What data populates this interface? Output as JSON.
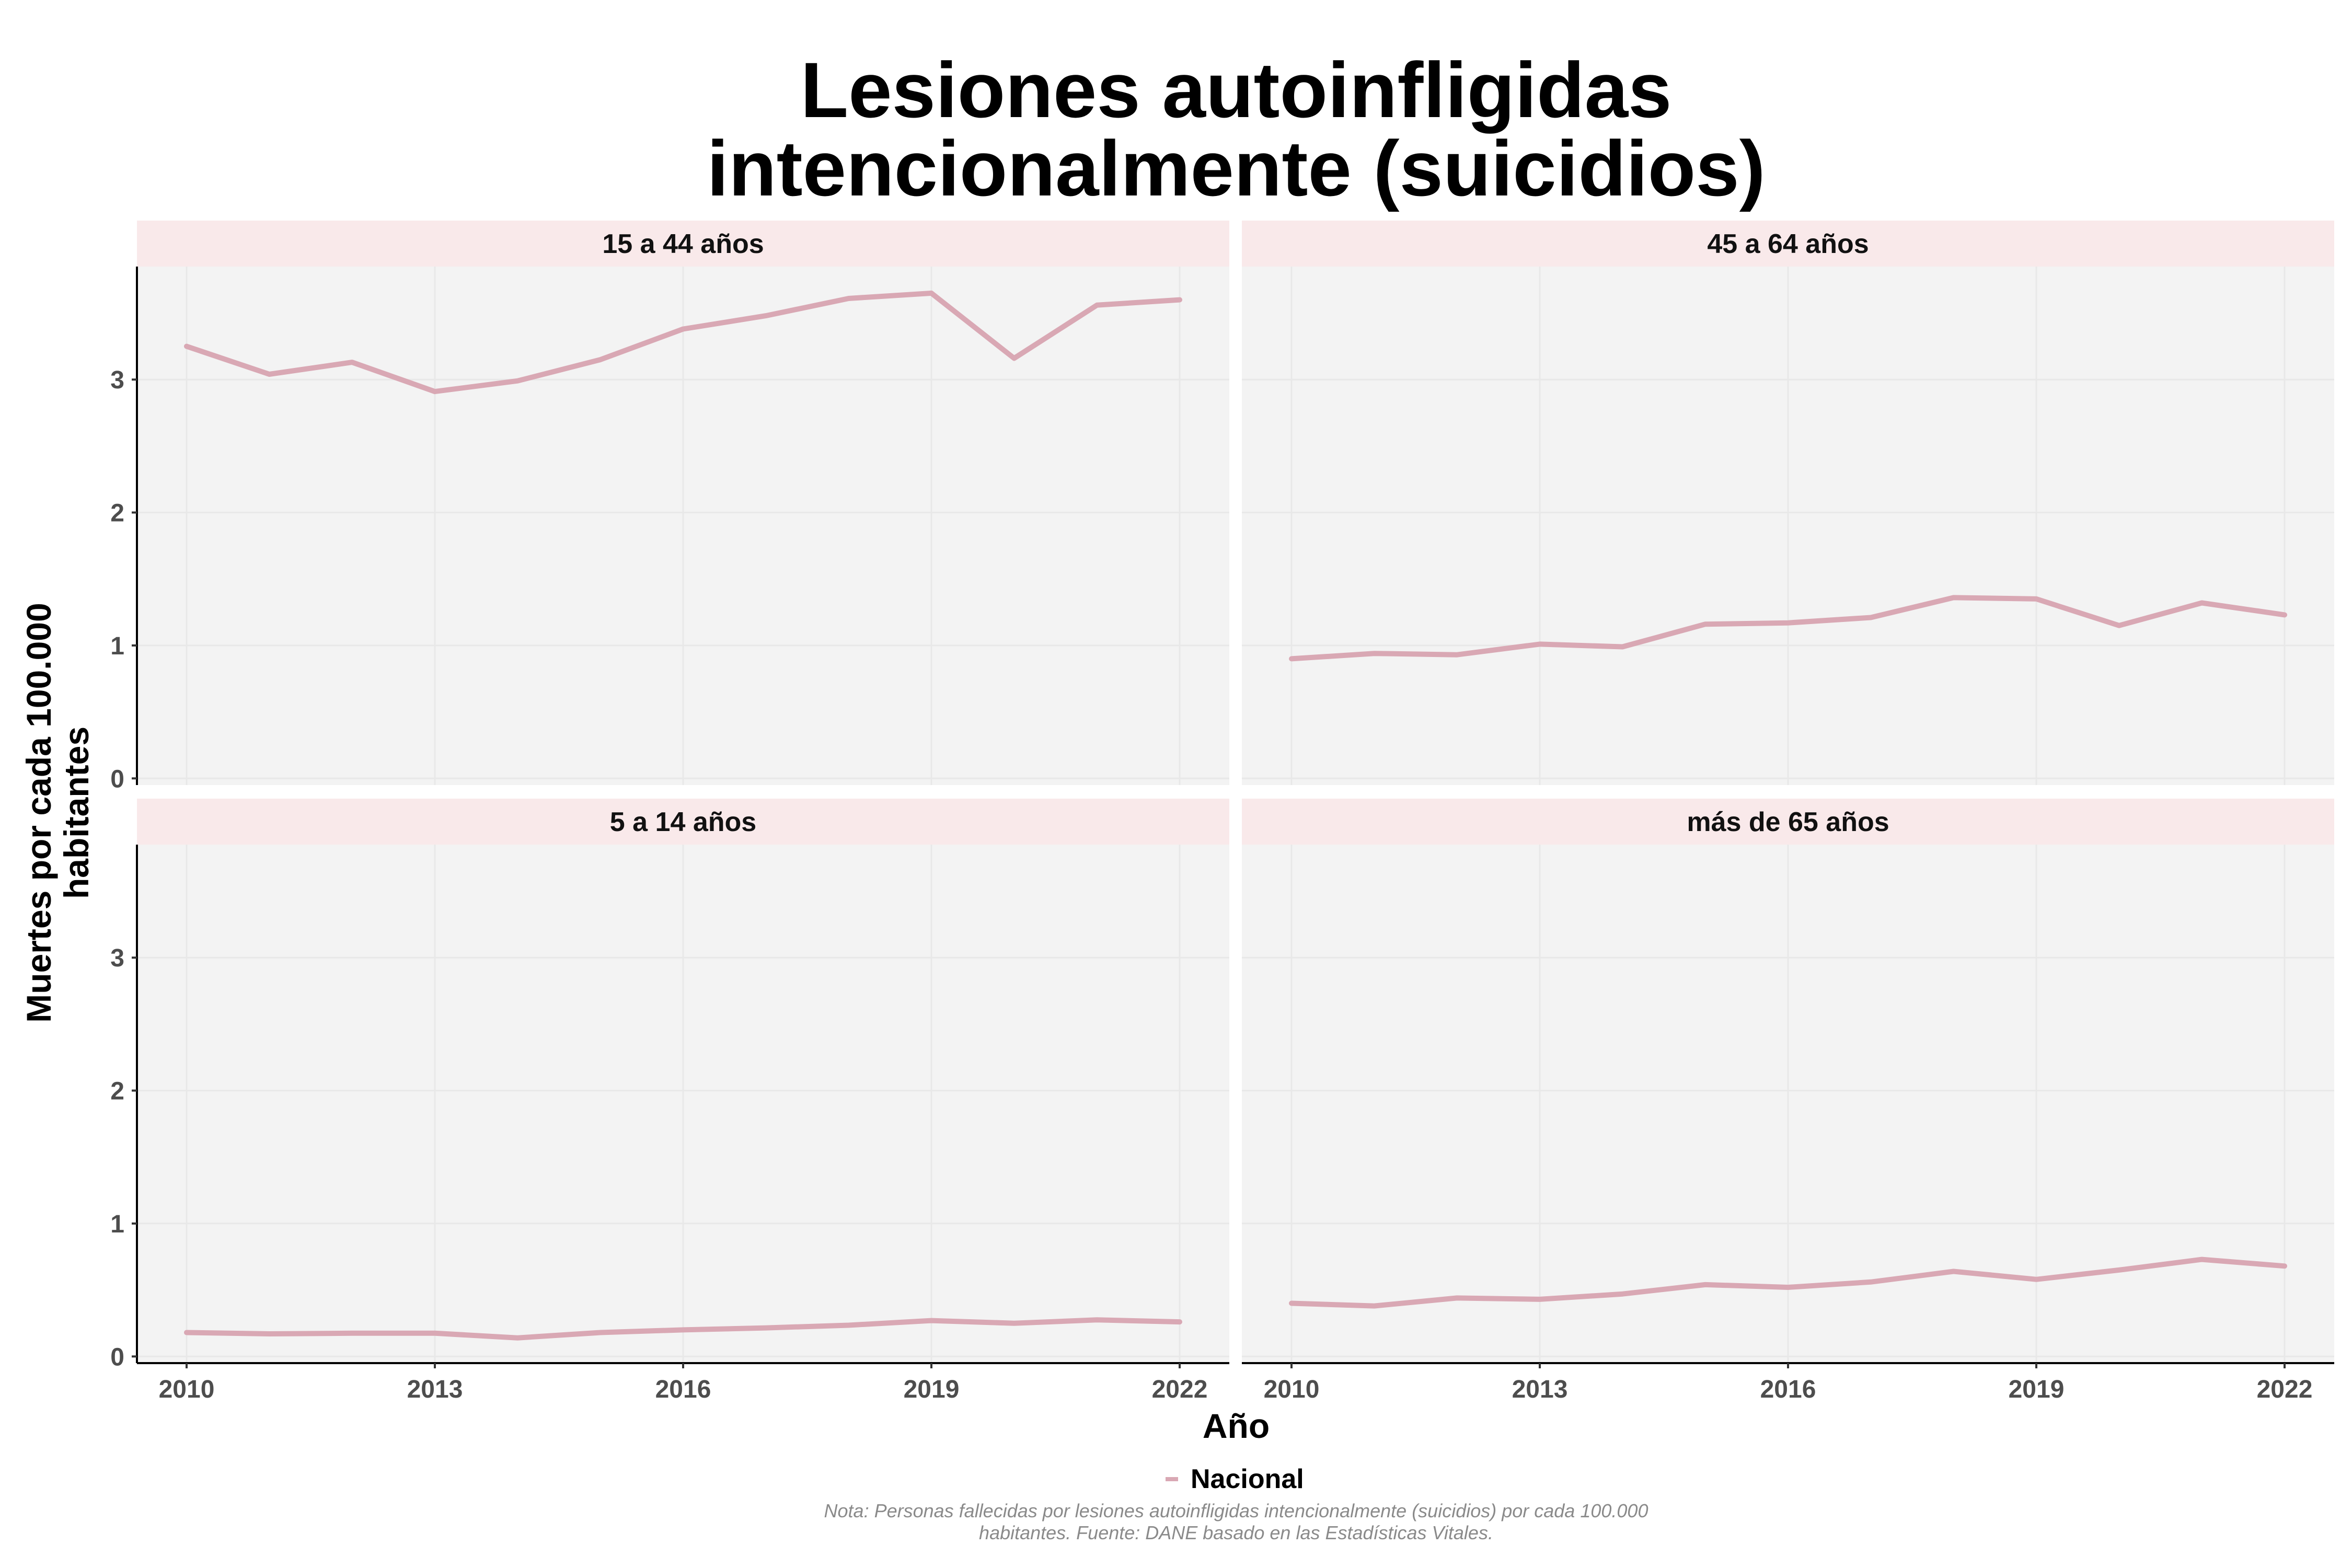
{
  "chart_data": {
    "type": "line",
    "title_lines": [
      "Lesiones autoinfligidas",
      "intencionalmente (suicidios)"
    ],
    "xlabel": "Año",
    "ylabel_lines": [
      "Muertes por cada 100.000",
      "habitantes"
    ],
    "x_ticks": [
      2010,
      2013,
      2016,
      2019,
      2022
    ],
    "y_ticks": [
      0,
      1,
      2,
      3
    ],
    "xlim": [
      2009.4,
      2022.6
    ],
    "ylim": [
      -0.05,
      3.85
    ],
    "series_name": "Nacional",
    "series_color": "#d9a8b4",
    "note_lines": [
      "Nota: Personas fallecidas por lesiones autoinfligidas intencionalmente (suicidios) por cada 100.000",
      "habitantes. Fuente: DANE basado en las Estadísticas Vitales."
    ],
    "panels": [
      {
        "label": "15 a 44 años",
        "x": [
          2010,
          2011,
          2012,
          2013,
          2014,
          2015,
          2016,
          2017,
          2018,
          2019,
          2020,
          2021,
          2022
        ],
        "y": [
          3.25,
          3.04,
          3.13,
          2.91,
          2.99,
          3.15,
          3.38,
          3.48,
          3.61,
          3.65,
          3.16,
          3.56,
          3.6
        ]
      },
      {
        "label": "45 a 64 años",
        "x": [
          2010,
          2011,
          2012,
          2013,
          2014,
          2015,
          2016,
          2017,
          2018,
          2019,
          2020,
          2021,
          2022
        ],
        "y": [
          0.9,
          0.94,
          0.93,
          1.01,
          0.99,
          1.16,
          1.17,
          1.21,
          1.36,
          1.35,
          1.15,
          1.32,
          1.23
        ]
      },
      {
        "label": "5 a 14 años",
        "x": [
          2010,
          2011,
          2012,
          2013,
          2014,
          2015,
          2016,
          2017,
          2018,
          2019,
          2020,
          2021,
          2022
        ],
        "y": [
          0.18,
          0.17,
          0.175,
          0.175,
          0.14,
          0.18,
          0.2,
          0.215,
          0.235,
          0.27,
          0.25,
          0.275,
          0.26
        ]
      },
      {
        "label": "más de 65 años",
        "x": [
          2010,
          2011,
          2012,
          2013,
          2014,
          2015,
          2016,
          2017,
          2018,
          2019,
          2020,
          2021,
          2022
        ],
        "y": [
          0.4,
          0.38,
          0.44,
          0.43,
          0.47,
          0.54,
          0.52,
          0.56,
          0.64,
          0.58,
          0.65,
          0.73,
          0.68
        ]
      }
    ]
  }
}
